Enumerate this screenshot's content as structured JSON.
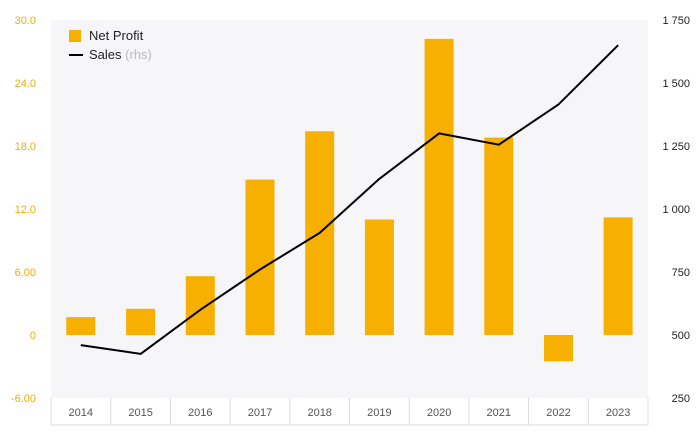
{
  "chart_data": {
    "type": "bar",
    "categories": [
      "2014",
      "2015",
      "2016",
      "2017",
      "2018",
      "2019",
      "2020",
      "2021",
      "2022",
      "2023"
    ],
    "series": [
      {
        "name": "Net Profit",
        "chart": "bar",
        "axis": "left",
        "color": "#f7b000",
        "values": [
          1.7,
          2.5,
          5.6,
          14.8,
          19.4,
          11.0,
          28.2,
          18.8,
          -2.5,
          11.2
        ]
      },
      {
        "name": "Sales",
        "name_suffix": "(rhs)",
        "chart": "line",
        "axis": "right",
        "color": "#000000",
        "values": [
          460,
          425,
          600,
          760,
          905,
          1120,
          1300,
          1255,
          1415,
          1650
        ]
      }
    ],
    "y_left": {
      "lim": [
        -6,
        30
      ],
      "ticks": [
        -6,
        0,
        6,
        12,
        18,
        24,
        30
      ],
      "tick_labels": [
        "-6.00",
        "0",
        "6.00",
        "12.0",
        "18.0",
        "24.0",
        "30.0"
      ],
      "color": "#f2ad00"
    },
    "y_right": {
      "lim": [
        250,
        1750
      ],
      "ticks": [
        250,
        500,
        750,
        1000,
        1250,
        1500,
        1750
      ],
      "tick_labels": [
        "250",
        "500",
        "750",
        "1 000",
        "1 250",
        "1 500",
        "1 750"
      ]
    },
    "legend_position": "top-left",
    "grid": false,
    "background": "#f6f6f8"
  }
}
